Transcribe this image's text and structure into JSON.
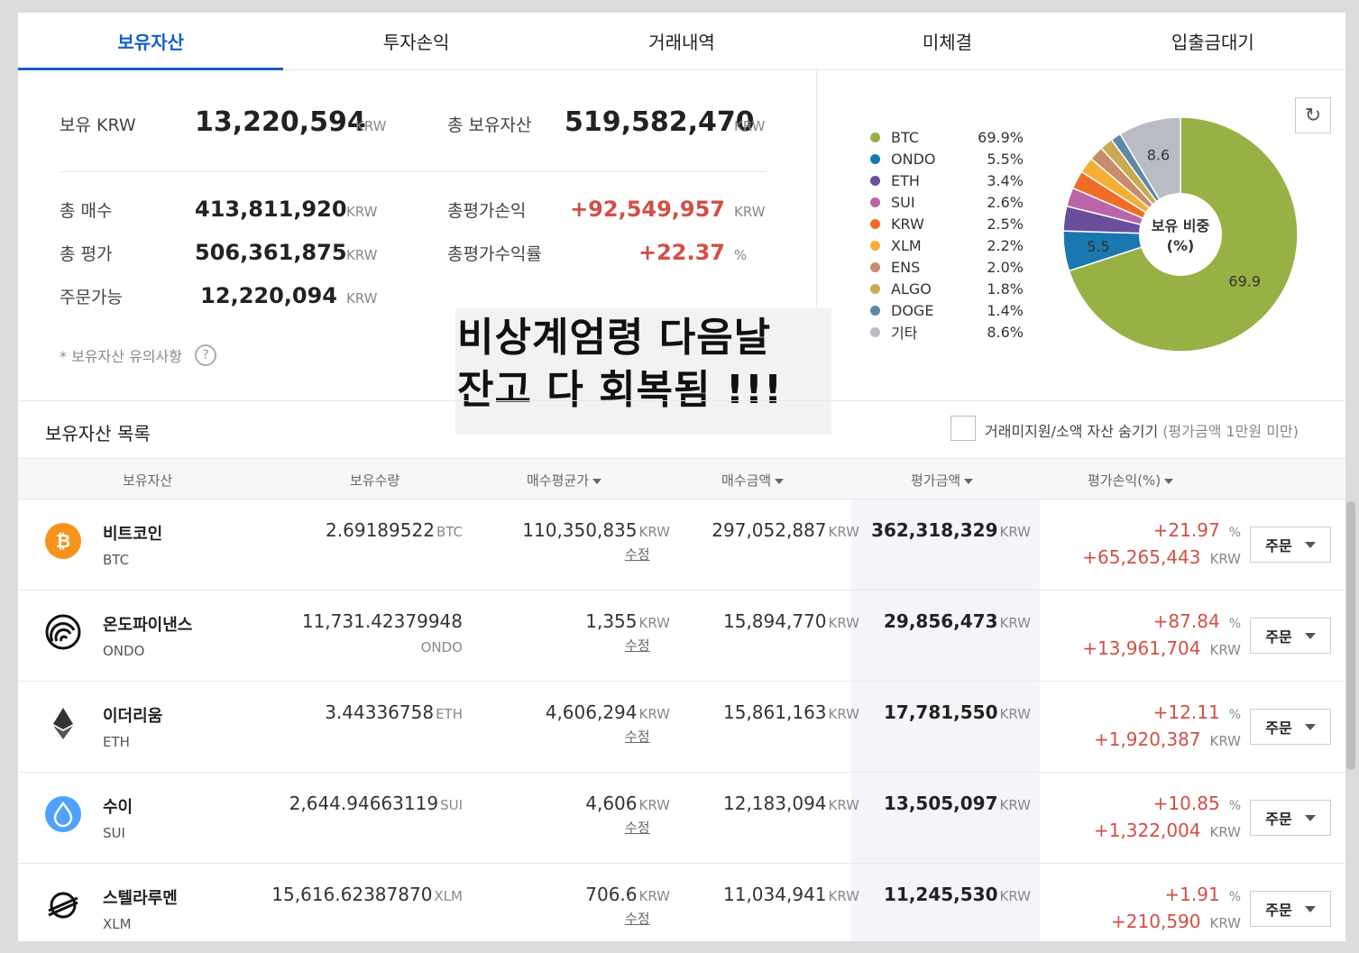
{
  "tabs": [
    "보유자산",
    "투자손익",
    "거래내역",
    "미체결",
    "입출금대기"
  ],
  "summary": {
    "krw_label": "보유 KRW",
    "krw_value": "13,220,594",
    "unit": "KRW",
    "total_label": "총 보유자산",
    "total_value": "519,582,470",
    "buy_label": "총 매수",
    "buy_value": "413,811,920",
    "eval_label": "총 평가",
    "eval_value": "506,361,875",
    "orderable_label": "주문가능",
    "orderable_value": "12,220,094",
    "pl_label": "총평가손익",
    "pl_value": "+92,549,957",
    "rate_label": "총평가수익률",
    "rate_value": "+22.37",
    "rate_unit": "%",
    "note": "* 보유자산 유의사항",
    "note_icon": "?"
  },
  "overlay": {
    "line1": "비상계엄령 다음날",
    "line2": "잔고 다 회복됨 !!!"
  },
  "chart": {
    "refresh_icon": "↻",
    "center_line1": "보유 비중",
    "center_line2": "(%)"
  },
  "chart_data": {
    "type": "pie",
    "categories": [
      "BTC",
      "ONDO",
      "ETH",
      "SUI",
      "KRW",
      "XLM",
      "ENS",
      "ALGO",
      "DOGE",
      "기타"
    ],
    "values": [
      69.9,
      5.5,
      3.4,
      2.6,
      2.5,
      2.2,
      2.0,
      1.8,
      1.4,
      8.6
    ],
    "labels": [
      "69.9%",
      "5.5%",
      "3.4%",
      "2.6%",
      "2.5%",
      "2.2%",
      "2.0%",
      "1.8%",
      "1.4%",
      "8.6%"
    ],
    "slice_labels": [
      "69.9",
      "5.5",
      "",
      "",
      "",
      "",
      "",
      "",
      "",
      "8.6"
    ],
    "colors": [
      "#97b145",
      "#1a78b0",
      "#6a4e9c",
      "#b866a8",
      "#ef6d27",
      "#f6ae35",
      "#c58d6a",
      "#c9aa53",
      "#5e87a8",
      "#b9bcc4"
    ],
    "legend_position": "left"
  },
  "list": {
    "title": "보유자산 목록",
    "hide_label": "거래미지원/소액 자산 숨기기",
    "hide_note": "(평가금액 1만원 미만)",
    "headers": [
      "보유자산",
      "보유수량",
      "매수평균가",
      "매수금액",
      "평가금액",
      "평가손익(%)"
    ],
    "edit_label": "수정",
    "order_label": "주문",
    "rows": [
      {
        "name": "비트코인",
        "sym": "BTC",
        "qty": "2.69189522",
        "qty_unit": "BTC",
        "avg": "110,350,835",
        "buy": "297,052,887",
        "eval": "362,318,329",
        "pct": "+21.97",
        "pl": "+65,265,443"
      },
      {
        "name": "온도파이낸스",
        "sym": "ONDO",
        "qty": "11,731.42379948",
        "qty_unit": "ONDO",
        "avg": "1,355",
        "buy": "15,894,770",
        "eval": "29,856,473",
        "pct": "+87.84",
        "pl": "+13,961,704"
      },
      {
        "name": "이더리움",
        "sym": "ETH",
        "qty": "3.44336758",
        "qty_unit": "ETH",
        "avg": "4,606,294",
        "buy": "15,861,163",
        "eval": "17,781,550",
        "pct": "+12.11",
        "pl": "+1,920,387"
      },
      {
        "name": "수이",
        "sym": "SUI",
        "qty": "2,644.94663119",
        "qty_unit": "SUI",
        "avg": "4,606",
        "buy": "12,183,094",
        "eval": "13,505,097",
        "pct": "+10.85",
        "pl": "+1,322,004"
      },
      {
        "name": "스텔라루멘",
        "sym": "XLM",
        "qty": "15,616.62387870",
        "qty_unit": "XLM",
        "avg": "706.6",
        "buy": "11,034,941",
        "eval": "11,245,530",
        "pct": "+1.91",
        "pl": "+210,590"
      }
    ]
  }
}
